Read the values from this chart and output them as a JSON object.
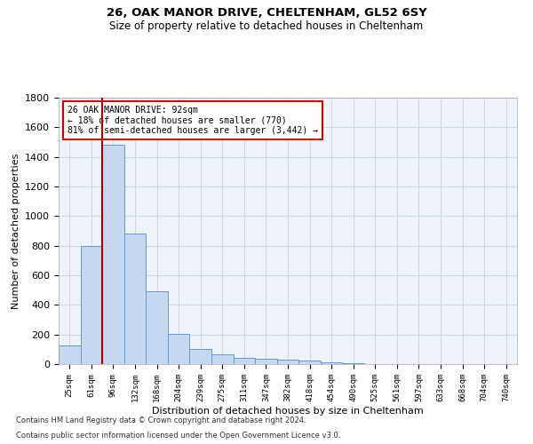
{
  "title1": "26, OAK MANOR DRIVE, CHELTENHAM, GL52 6SY",
  "title2": "Size of property relative to detached houses in Cheltenham",
  "xlabel": "Distribution of detached houses by size in Cheltenham",
  "ylabel": "Number of detached properties",
  "footnote1": "Contains HM Land Registry data © Crown copyright and database right 2024.",
  "footnote2": "Contains public sector information licensed under the Open Government Licence v3.0.",
  "annotation_line1": "26 OAK MANOR DRIVE: 92sqm",
  "annotation_line2": "← 18% of detached houses are smaller (770)",
  "annotation_line3": "81% of semi-detached houses are larger (3,442) →",
  "bar_color": "#c5d8f0",
  "bar_edge_color": "#6699cc",
  "vline_color": "#aa0000",
  "annotation_box_edge_color": "#cc0000",
  "grid_color": "#d0d8e8",
  "background_color": "#ffffff",
  "plot_bg_color": "#eef2f9",
  "categories": [
    "25sqm",
    "61sqm",
    "96sqm",
    "132sqm",
    "168sqm",
    "204sqm",
    "239sqm",
    "275sqm",
    "311sqm",
    "347sqm",
    "382sqm",
    "418sqm",
    "454sqm",
    "490sqm",
    "525sqm",
    "561sqm",
    "597sqm",
    "633sqm",
    "668sqm",
    "704sqm",
    "740sqm"
  ],
  "values": [
    125,
    800,
    1480,
    880,
    490,
    205,
    105,
    65,
    45,
    35,
    30,
    22,
    14,
    5,
    3,
    2,
    2,
    1,
    1,
    1,
    1
  ],
  "ylim": [
    0,
    1800
  ],
  "yticks": [
    0,
    200,
    400,
    600,
    800,
    1000,
    1200,
    1400,
    1600,
    1800
  ],
  "vline_index": 2
}
